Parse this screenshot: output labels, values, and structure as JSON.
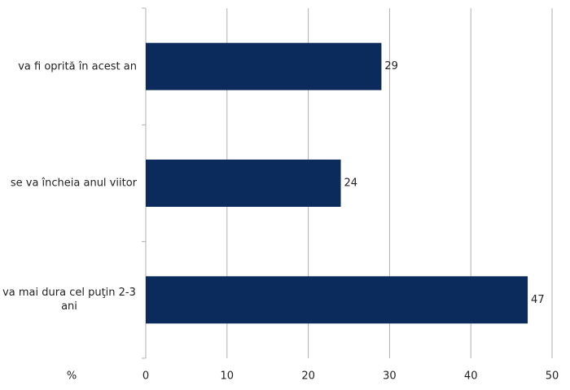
{
  "chart_data": {
    "type": "bar",
    "orientation": "horizontal",
    "categories": [
      "va fi oprită în acest an",
      "se va încheia anul viitor",
      "va mai dura cel puţin 2-3 ani"
    ],
    "values": [
      29,
      24,
      47
    ],
    "color": "#0b2b5c",
    "x_label": "%",
    "xlim": [
      0,
      50
    ],
    "xticks": [
      0,
      10,
      20,
      30,
      40,
      50
    ],
    "grid": true
  }
}
